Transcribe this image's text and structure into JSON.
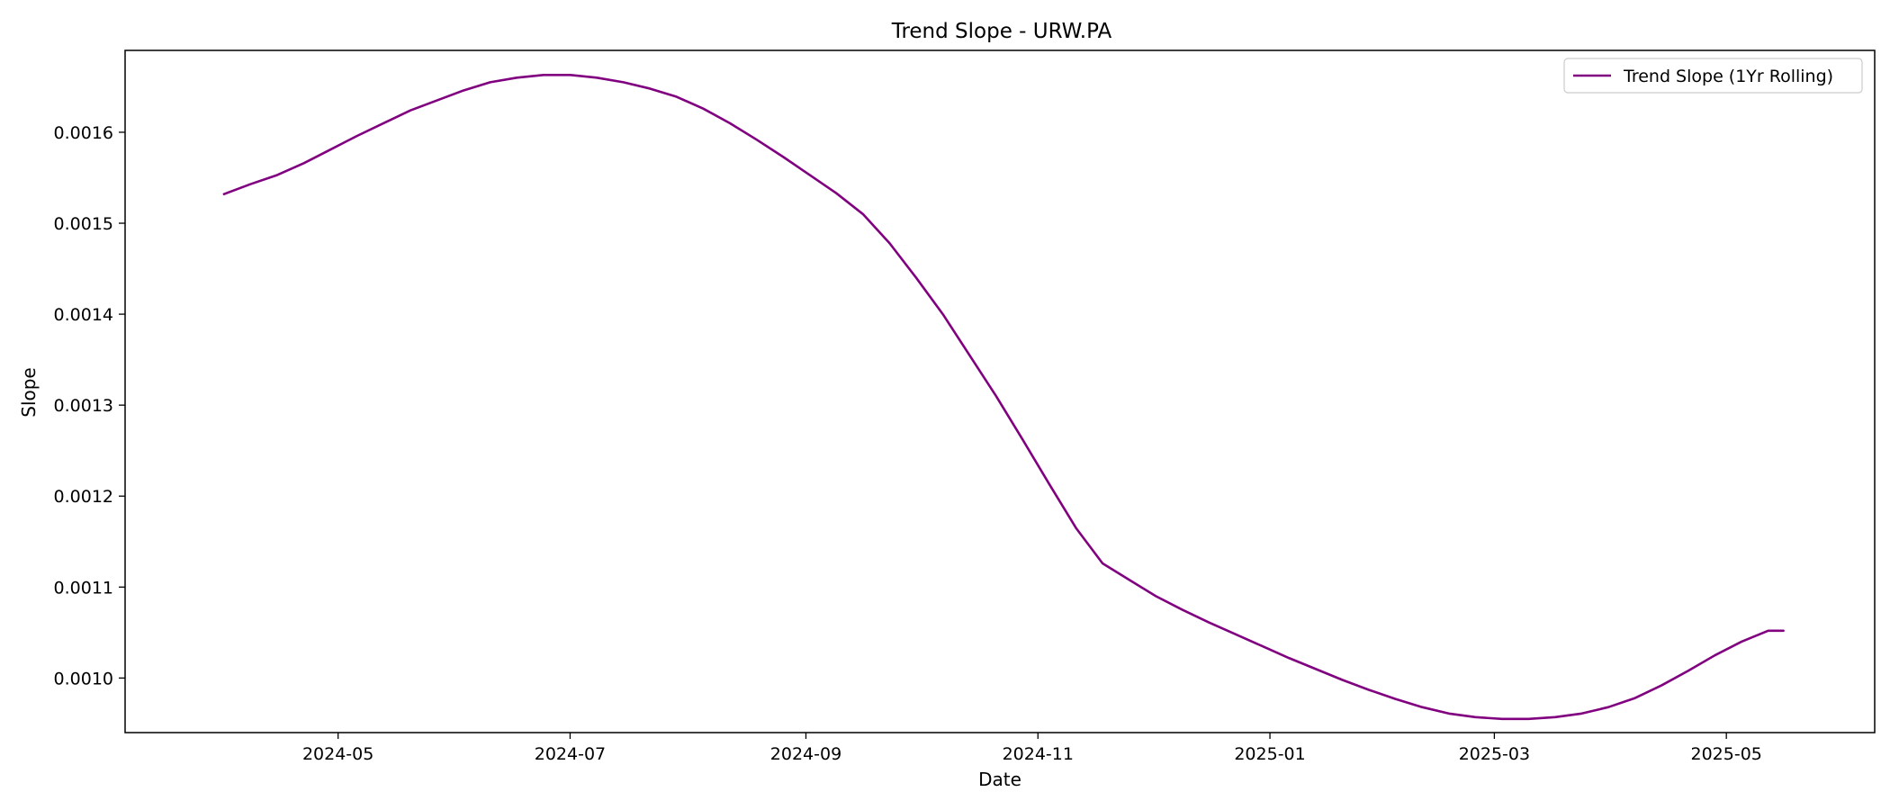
{
  "chart_data": {
    "type": "line",
    "title": "Trend Slope - URW.PA",
    "xlabel": "Date",
    "ylabel": "Slope",
    "xlim": [
      "2024-03-06",
      "2025-06-09"
    ],
    "ylim": [
      0.00094,
      0.00169
    ],
    "x_ticks": [
      "2024-05",
      "2024-07",
      "2024-09",
      "2024-11",
      "2025-01",
      "2025-03",
      "2025-05"
    ],
    "y_ticks": [
      0.001,
      0.0011,
      0.0012,
      0.0013,
      0.0014,
      0.0015,
      0.0016
    ],
    "grid": false,
    "legend_position": "top-right",
    "series": [
      {
        "name": "Trend Slope (1Yr Rolling)",
        "color": "#800080",
        "x": [
          "2024-04-01",
          "2024-04-08",
          "2024-04-15",
          "2024-04-22",
          "2024-04-29",
          "2024-05-06",
          "2024-05-13",
          "2024-05-20",
          "2024-05-27",
          "2024-06-03",
          "2024-06-10",
          "2024-06-17",
          "2024-06-24",
          "2024-07-01",
          "2024-07-08",
          "2024-07-15",
          "2024-07-22",
          "2024-07-29",
          "2024-08-05",
          "2024-08-12",
          "2024-08-19",
          "2024-08-26",
          "2024-09-02",
          "2024-09-09",
          "2024-09-16",
          "2024-09-23",
          "2024-09-30",
          "2024-10-07",
          "2024-10-14",
          "2024-10-21",
          "2024-10-28",
          "2024-11-04",
          "2024-11-11",
          "2024-11-18",
          "2024-11-25",
          "2024-12-02",
          "2024-12-09",
          "2024-12-16",
          "2024-12-23",
          "2024-12-30",
          "2025-01-06",
          "2025-01-13",
          "2025-01-20",
          "2025-01-27",
          "2025-02-03",
          "2025-02-10",
          "2025-02-17",
          "2025-02-24",
          "2025-03-03",
          "2025-03-10",
          "2025-03-17",
          "2025-03-24",
          "2025-03-31",
          "2025-04-07",
          "2025-04-14",
          "2025-04-21",
          "2025-04-28",
          "2025-05-05",
          "2025-05-12",
          "2025-05-16"
        ],
        "y": [
          0.001532,
          0.001543,
          0.001553,
          0.001566,
          0.001581,
          0.001596,
          0.00161,
          0.001624,
          0.001635,
          0.001646,
          0.001655,
          0.00166,
          0.001663,
          0.001663,
          0.00166,
          0.001655,
          0.001648,
          0.001639,
          0.001626,
          0.00161,
          0.001592,
          0.001573,
          0.001553,
          0.001533,
          0.00151,
          0.001478,
          0.00144,
          0.0014,
          0.001355,
          0.00131,
          0.001262,
          0.001213,
          0.001165,
          0.001126,
          0.001108,
          0.00109,
          0.001075,
          0.001061,
          0.001048,
          0.001035,
          0.001022,
          0.00101,
          0.000998,
          0.000987,
          0.000977,
          0.000968,
          0.000961,
          0.000957,
          0.000955,
          0.000955,
          0.000957,
          0.000961,
          0.000968,
          0.000978,
          0.000992,
          0.001008,
          0.001025,
          0.00104,
          0.001052,
          0.001052
        ]
      }
    ]
  }
}
